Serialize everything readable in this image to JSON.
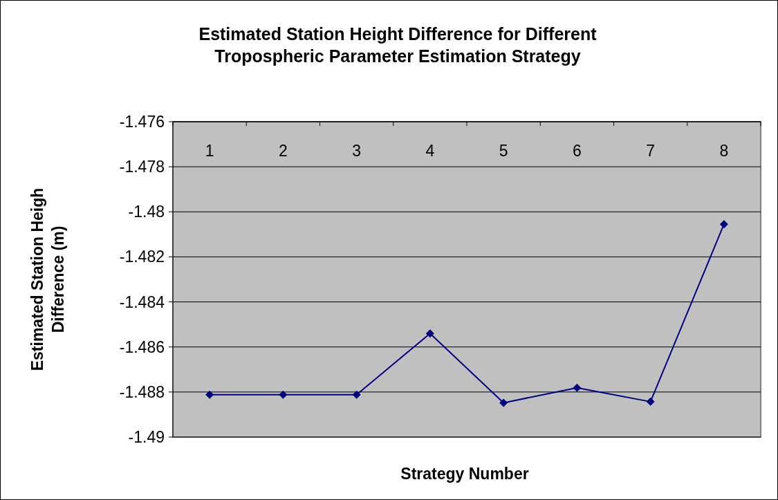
{
  "chart_data": {
    "type": "line",
    "title": "Estimated Station Height Difference for Different Tropospheric Parameter Estimation Strategy",
    "xlabel": "Strategy Number",
    "ylabel": "Estimated Station Heigh Difference (m)",
    "categories": [
      "1",
      "2",
      "3",
      "4",
      "5",
      "6",
      "7",
      "8"
    ],
    "series": [
      {
        "color": "#000080",
        "values": [
          -1.48812,
          -1.48812,
          -1.48812,
          -1.4854,
          -1.48848,
          -1.48781,
          -1.48843,
          -1.48055
        ]
      }
    ],
    "ylim": [
      -1.49,
      -1.476
    ],
    "yticks": [
      -1.49,
      -1.488,
      -1.486,
      -1.484,
      -1.482,
      -1.48,
      -1.478,
      -1.476
    ],
    "grid": "y",
    "marker": "diamond",
    "line_style": "solid"
  }
}
